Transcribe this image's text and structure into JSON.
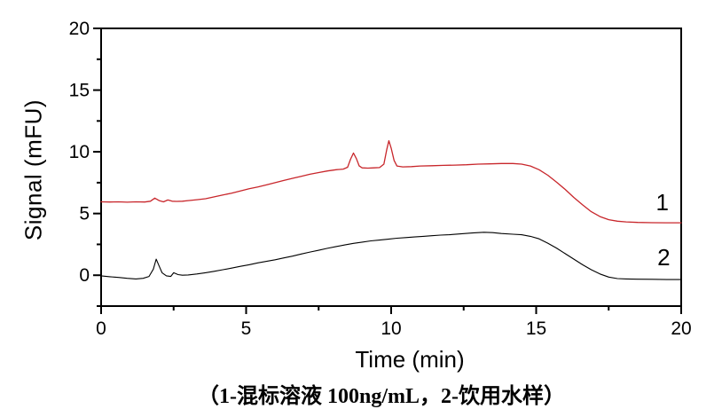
{
  "figure": {
    "caption": "（1-混标溶液 100ng/mL，2-饮用水样）"
  },
  "chart_data": {
    "type": "line",
    "title": "",
    "xlabel": "Time (min)",
    "ylabel": "Signal (mFU)",
    "xlim": [
      0,
      20
    ],
    "ylim": [
      -2.5,
      20
    ],
    "x_ticks": [
      0,
      5,
      10,
      15,
      20
    ],
    "y_ticks": [
      0,
      5,
      10,
      15,
      20
    ],
    "x_minor_step": 2.5,
    "y_minor_step": 2.5,
    "grid": false,
    "frame": true,
    "axis_color": "#000000",
    "series": [
      {
        "name": "1",
        "description": "混标溶液 100ng/mL",
        "color": "#c8262b",
        "width": 1.3,
        "points": [
          [
            0,
            5.95
          ],
          [
            0.3,
            5.93
          ],
          [
            0.6,
            5.95
          ],
          [
            0.9,
            5.92
          ],
          [
            1.2,
            5.95
          ],
          [
            1.5,
            5.93
          ],
          [
            1.7,
            6.0
          ],
          [
            1.85,
            6.25
          ],
          [
            2.0,
            6.05
          ],
          [
            2.15,
            5.95
          ],
          [
            2.3,
            6.1
          ],
          [
            2.45,
            6.0
          ],
          [
            2.6,
            5.98
          ],
          [
            2.8,
            6.0
          ],
          [
            3.0,
            6.05
          ],
          [
            3.3,
            6.12
          ],
          [
            3.6,
            6.2
          ],
          [
            3.9,
            6.35
          ],
          [
            4.2,
            6.5
          ],
          [
            4.5,
            6.65
          ],
          [
            4.8,
            6.82
          ],
          [
            5.1,
            7.0
          ],
          [
            5.4,
            7.15
          ],
          [
            5.7,
            7.32
          ],
          [
            6.0,
            7.5
          ],
          [
            6.3,
            7.68
          ],
          [
            6.6,
            7.85
          ],
          [
            6.9,
            8.02
          ],
          [
            7.2,
            8.18
          ],
          [
            7.5,
            8.32
          ],
          [
            7.8,
            8.45
          ],
          [
            8.1,
            8.55
          ],
          [
            8.35,
            8.6
          ],
          [
            8.5,
            8.75
          ],
          [
            8.6,
            9.4
          ],
          [
            8.7,
            9.9
          ],
          [
            8.8,
            9.45
          ],
          [
            8.9,
            8.85
          ],
          [
            9.0,
            8.7
          ],
          [
            9.2,
            8.68
          ],
          [
            9.4,
            8.7
          ],
          [
            9.6,
            8.72
          ],
          [
            9.75,
            9.0
          ],
          [
            9.85,
            10.2
          ],
          [
            9.92,
            10.9
          ],
          [
            10.0,
            10.3
          ],
          [
            10.1,
            9.3
          ],
          [
            10.2,
            8.85
          ],
          [
            10.4,
            8.78
          ],
          [
            10.7,
            8.8
          ],
          [
            11.0,
            8.85
          ],
          [
            11.4,
            8.87
          ],
          [
            11.8,
            8.9
          ],
          [
            12.2,
            8.92
          ],
          [
            12.6,
            8.95
          ],
          [
            13.0,
            9.0
          ],
          [
            13.4,
            9.02
          ],
          [
            13.8,
            9.05
          ],
          [
            14.2,
            9.05
          ],
          [
            14.5,
            9.0
          ],
          [
            14.8,
            8.85
          ],
          [
            15.1,
            8.55
          ],
          [
            15.4,
            8.1
          ],
          [
            15.7,
            7.55
          ],
          [
            16.0,
            6.95
          ],
          [
            16.3,
            6.3
          ],
          [
            16.6,
            5.7
          ],
          [
            16.9,
            5.15
          ],
          [
            17.2,
            4.75
          ],
          [
            17.5,
            4.5
          ],
          [
            17.8,
            4.38
          ],
          [
            18.1,
            4.32
          ],
          [
            18.5,
            4.28
          ],
          [
            19.0,
            4.26
          ],
          [
            19.5,
            4.25
          ],
          [
            20.0,
            4.25
          ]
        ]
      },
      {
        "name": "2",
        "description": "饮用水样",
        "color": "#000000",
        "width": 1.1,
        "points": [
          [
            0,
            -0.05
          ],
          [
            0.3,
            -0.12
          ],
          [
            0.6,
            -0.18
          ],
          [
            0.9,
            -0.25
          ],
          [
            1.2,
            -0.3
          ],
          [
            1.45,
            -0.25
          ],
          [
            1.65,
            -0.1
          ],
          [
            1.8,
            0.5
          ],
          [
            1.9,
            1.3
          ],
          [
            2.0,
            0.75
          ],
          [
            2.1,
            0.2
          ],
          [
            2.25,
            -0.05
          ],
          [
            2.4,
            -0.1
          ],
          [
            2.5,
            0.2
          ],
          [
            2.65,
            0.05
          ],
          [
            2.8,
            0.0
          ],
          [
            3.0,
            0.02
          ],
          [
            3.3,
            0.1
          ],
          [
            3.6,
            0.2
          ],
          [
            3.9,
            0.32
          ],
          [
            4.2,
            0.45
          ],
          [
            4.5,
            0.58
          ],
          [
            4.8,
            0.72
          ],
          [
            5.1,
            0.85
          ],
          [
            5.4,
            1.0
          ],
          [
            5.7,
            1.12
          ],
          [
            6.0,
            1.25
          ],
          [
            6.3,
            1.4
          ],
          [
            6.6,
            1.55
          ],
          [
            6.9,
            1.72
          ],
          [
            7.2,
            1.88
          ],
          [
            7.5,
            2.02
          ],
          [
            7.8,
            2.18
          ],
          [
            8.1,
            2.32
          ],
          [
            8.4,
            2.45
          ],
          [
            8.7,
            2.58
          ],
          [
            9.0,
            2.68
          ],
          [
            9.3,
            2.78
          ],
          [
            9.6,
            2.85
          ],
          [
            9.9,
            2.92
          ],
          [
            10.2,
            3.0
          ],
          [
            10.5,
            3.05
          ],
          [
            10.8,
            3.1
          ],
          [
            11.1,
            3.15
          ],
          [
            11.4,
            3.2
          ],
          [
            11.7,
            3.25
          ],
          [
            12.0,
            3.28
          ],
          [
            12.4,
            3.35
          ],
          [
            12.8,
            3.42
          ],
          [
            13.2,
            3.48
          ],
          [
            13.5,
            3.45
          ],
          [
            13.8,
            3.38
          ],
          [
            14.2,
            3.32
          ],
          [
            14.5,
            3.28
          ],
          [
            14.8,
            3.15
          ],
          [
            15.1,
            2.95
          ],
          [
            15.4,
            2.6
          ],
          [
            15.7,
            2.2
          ],
          [
            16.0,
            1.75
          ],
          [
            16.3,
            1.3
          ],
          [
            16.6,
            0.85
          ],
          [
            16.9,
            0.45
          ],
          [
            17.2,
            0.1
          ],
          [
            17.5,
            -0.15
          ],
          [
            17.8,
            -0.27
          ],
          [
            18.1,
            -0.3
          ],
          [
            18.5,
            -0.32
          ],
          [
            19.0,
            -0.33
          ],
          [
            19.5,
            -0.35
          ],
          [
            20.0,
            -0.35
          ]
        ]
      }
    ],
    "annotations": [
      {
        "text": "1",
        "x": 19.35,
        "y": 5.92
      },
      {
        "text": "2",
        "x": 19.4,
        "y": 1.44
      }
    ]
  }
}
